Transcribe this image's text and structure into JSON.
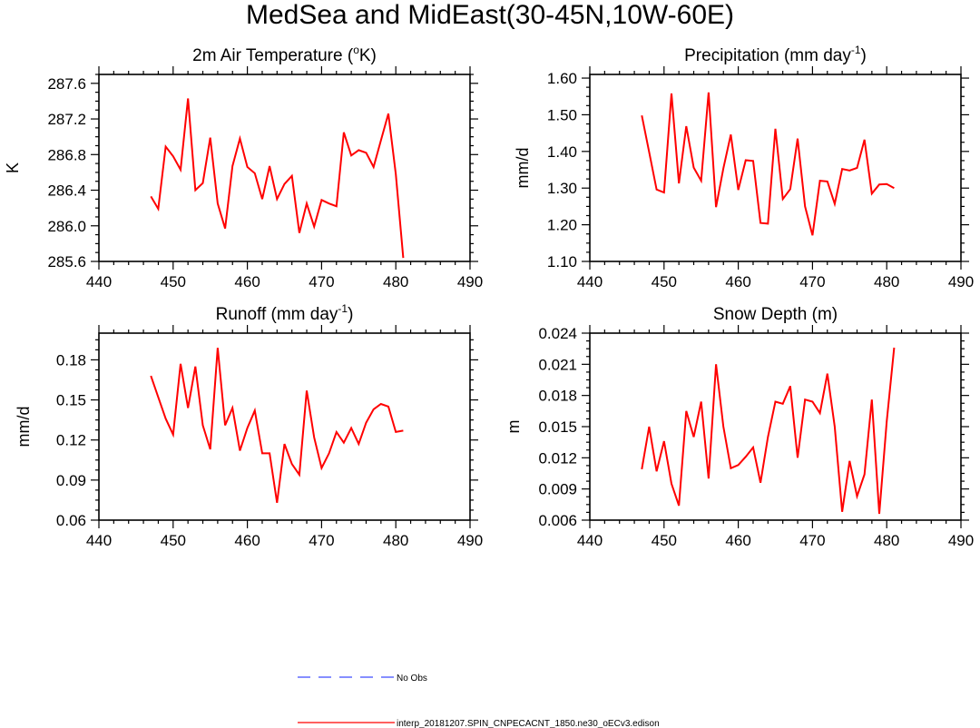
{
  "figure": {
    "title": "MedSea and MidEast(30-45N,10W-60E)"
  },
  "legend": [
    {
      "label": "No Obs",
      "color": "#3f4cff",
      "style": "dashed"
    },
    {
      "label": "interp_20181207.SPIN_CNPECACNT_1850.ne30_oECv3.edison",
      "color": "#ff0000",
      "style": "solid"
    }
  ],
  "chart_data": [
    {
      "type": "line",
      "title": "2m Air Temperature (",
      "title_sup": "o",
      "title_suffix": "K)",
      "xlabel": "",
      "ylabel": "K",
      "xlim": [
        440,
        490
      ],
      "ylim": [
        285.6,
        287.7
      ],
      "xticks": [
        440,
        450,
        460,
        470,
        480,
        490
      ],
      "yticks": [
        285.6,
        286.0,
        286.4,
        286.8,
        287.2,
        287.6
      ],
      "ytick_labels": [
        "285.6",
        "286.0",
        "286.4",
        "286.8",
        "287.2",
        "287.6"
      ],
      "series": [
        {
          "name": "interp_20181207.SPIN_CNPECACNT_1850.ne30_oECv3.edison",
          "color": "#ff0000",
          "x": [
            447,
            448,
            449,
            450,
            451,
            452,
            453,
            454,
            455,
            456,
            457,
            458,
            459,
            460,
            461,
            462,
            463,
            464,
            465,
            466,
            467,
            468,
            469,
            470,
            471,
            472,
            473,
            474,
            475,
            476,
            477,
            478,
            479,
            480,
            481
          ],
          "values": [
            286.33,
            286.19,
            286.89,
            286.78,
            286.63,
            287.43,
            286.4,
            286.48,
            286.99,
            286.25,
            285.97,
            286.67,
            286.98,
            286.66,
            286.59,
            286.3,
            286.67,
            286.3,
            286.47,
            286.56,
            285.92,
            286.25,
            285.99,
            286.29,
            286.25,
            286.22,
            287.05,
            286.79,
            286.85,
            286.82,
            286.66,
            286.96,
            287.26,
            286.58,
            285.64
          ]
        }
      ]
    },
    {
      "type": "line",
      "title": "Precipitation (mm day",
      "title_sup": "-1",
      "title_suffix": ")",
      "xlabel": "",
      "ylabel": "mm/d",
      "xlim": [
        440,
        490
      ],
      "ylim": [
        1.1,
        1.61
      ],
      "xticks": [
        440,
        450,
        460,
        470,
        480,
        490
      ],
      "yticks": [
        1.1,
        1.2,
        1.3,
        1.4,
        1.5,
        1.6
      ],
      "ytick_labels": [
        "1.10",
        "1.20",
        "1.30",
        "1.40",
        "1.50",
        "1.60"
      ],
      "series": [
        {
          "name": "interp_20181207.SPIN_CNPECACNT_1850.ne30_oECv3.edison",
          "color": "#ff0000",
          "x": [
            447,
            448,
            449,
            450,
            451,
            452,
            453,
            454,
            455,
            456,
            457,
            458,
            459,
            460,
            461,
            462,
            463,
            464,
            465,
            466,
            467,
            468,
            469,
            470,
            471,
            472,
            473,
            474,
            475,
            476,
            477,
            478,
            479,
            480,
            481
          ],
          "values": [
            1.498,
            1.398,
            1.296,
            1.288,
            1.558,
            1.313,
            1.469,
            1.356,
            1.32,
            1.561,
            1.248,
            1.354,
            1.446,
            1.295,
            1.376,
            1.374,
            1.205,
            1.203,
            1.462,
            1.27,
            1.297,
            1.435,
            1.25,
            1.171,
            1.32,
            1.318,
            1.257,
            1.352,
            1.348,
            1.355,
            1.432,
            1.285,
            1.31,
            1.311,
            1.3
          ]
        }
      ]
    },
    {
      "type": "line",
      "title": "Runoff (mm day",
      "title_sup": "-1",
      "title_suffix": ")",
      "xlabel": "",
      "ylabel": "mm/d",
      "xlim": [
        440,
        490
      ],
      "ylim": [
        0.06,
        0.2
      ],
      "xticks": [
        440,
        450,
        460,
        470,
        480,
        490
      ],
      "yticks": [
        0.06,
        0.09,
        0.12,
        0.15,
        0.18
      ],
      "ytick_labels": [
        "0.06",
        "0.09",
        "0.12",
        "0.15",
        "0.18"
      ],
      "series": [
        {
          "name": "interp_20181207.SPIN_CNPECACNT_1850.ne30_oECv3.edison",
          "color": "#ff0000",
          "x": [
            447,
            448,
            449,
            450,
            451,
            452,
            453,
            454,
            455,
            456,
            457,
            458,
            459,
            460,
            461,
            462,
            463,
            464,
            465,
            466,
            467,
            468,
            469,
            470,
            471,
            472,
            473,
            474,
            475,
            476,
            477,
            478,
            479,
            480,
            481
          ],
          "values": [
            0.168,
            0.152,
            0.136,
            0.124,
            0.177,
            0.144,
            0.175,
            0.131,
            0.113,
            0.189,
            0.131,
            0.144,
            0.112,
            0.129,
            0.142,
            0.11,
            0.11,
            0.073,
            0.117,
            0.102,
            0.094,
            0.157,
            0.122,
            0.099,
            0.11,
            0.126,
            0.118,
            0.129,
            0.117,
            0.133,
            0.143,
            0.147,
            0.145,
            0.126,
            0.127
          ]
        }
      ]
    },
    {
      "type": "line",
      "title": "Snow Depth (m)",
      "title_sup": "",
      "title_suffix": "",
      "xlabel": "",
      "ylabel": "m",
      "xlim": [
        440,
        490
      ],
      "ylim": [
        0.006,
        0.024
      ],
      "xticks": [
        440,
        450,
        460,
        470,
        480,
        490
      ],
      "yticks": [
        0.006,
        0.009,
        0.012,
        0.015,
        0.018,
        0.021,
        0.024
      ],
      "ytick_labels": [
        "0.006",
        "0.009",
        "0.012",
        "0.015",
        "0.018",
        "0.021",
        "0.024"
      ],
      "series": [
        {
          "name": "interp_20181207.SPIN_CNPECACNT_1850.ne30_oECv3.edison",
          "color": "#ff0000",
          "x": [
            447,
            448,
            449,
            450,
            451,
            452,
            453,
            454,
            455,
            456,
            457,
            458,
            459,
            460,
            461,
            462,
            463,
            464,
            465,
            466,
            467,
            468,
            469,
            470,
            471,
            472,
            473,
            474,
            475,
            476,
            477,
            478,
            479,
            480,
            481
          ],
          "values": [
            0.0109,
            0.015,
            0.0107,
            0.0136,
            0.0095,
            0.0074,
            0.0165,
            0.014,
            0.0174,
            0.01,
            0.021,
            0.015,
            0.011,
            0.0113,
            0.0121,
            0.013,
            0.0096,
            0.014,
            0.0174,
            0.0172,
            0.0189,
            0.012,
            0.0176,
            0.0174,
            0.0163,
            0.0201,
            0.015,
            0.0068,
            0.0117,
            0.0083,
            0.0104,
            0.0176,
            0.0066,
            0.0155,
            0.0226
          ]
        }
      ]
    }
  ]
}
